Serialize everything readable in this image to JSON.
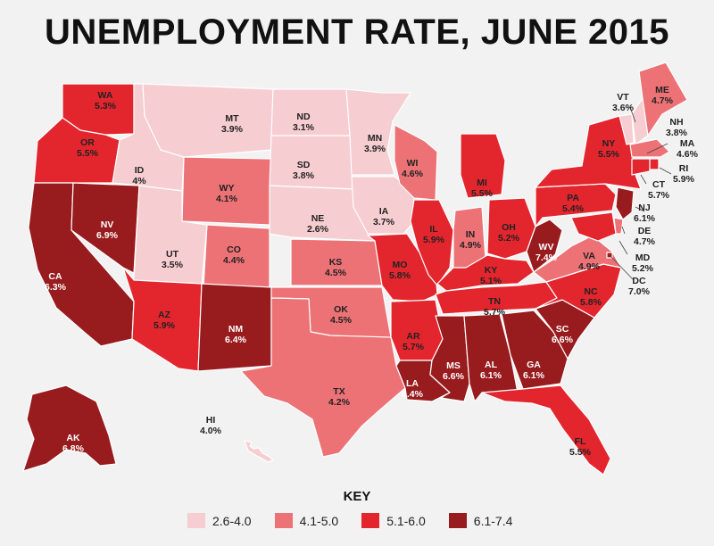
{
  "title": "UNEMPLOYMENT RATE, JUNE 2015",
  "key": {
    "title": "KEY",
    "items": [
      {
        "range": "2.6-4.0",
        "color": "#f6cdd0"
      },
      {
        "range": "4.1-5.0",
        "color": "#ec7276"
      },
      {
        "range": "5.1-6.0",
        "color": "#e3262e"
      },
      {
        "range": "6.1-7.4",
        "color": "#981b1e"
      }
    ]
  },
  "states": [
    {
      "abbr": "WA",
      "rate": "5.3%"
    },
    {
      "abbr": "OR",
      "rate": "5.5%"
    },
    {
      "abbr": "CA",
      "rate": "6.3%"
    },
    {
      "abbr": "NV",
      "rate": "6.9%"
    },
    {
      "abbr": "ID",
      "rate": "4%"
    },
    {
      "abbr": "MT",
      "rate": "3.9%"
    },
    {
      "abbr": "WY",
      "rate": "4.1%"
    },
    {
      "abbr": "UT",
      "rate": "3.5%"
    },
    {
      "abbr": "AZ",
      "rate": "5.9%"
    },
    {
      "abbr": "CO",
      "rate": "4.4%"
    },
    {
      "abbr": "NM",
      "rate": "6.4%"
    },
    {
      "abbr": "ND",
      "rate": "3.1%"
    },
    {
      "abbr": "SD",
      "rate": "3.8%"
    },
    {
      "abbr": "NE",
      "rate": "2.6%"
    },
    {
      "abbr": "KS",
      "rate": "4.5%"
    },
    {
      "abbr": "OK",
      "rate": "4.5%"
    },
    {
      "abbr": "TX",
      "rate": "4.2%"
    },
    {
      "abbr": "MN",
      "rate": "3.9%"
    },
    {
      "abbr": "IA",
      "rate": "3.7%"
    },
    {
      "abbr": "MO",
      "rate": "5.8%"
    },
    {
      "abbr": "AR",
      "rate": "5.7%"
    },
    {
      "abbr": "LA",
      "rate": "6.4%"
    },
    {
      "abbr": "WI",
      "rate": "4.6%"
    },
    {
      "abbr": "IL",
      "rate": "5.9%"
    },
    {
      "abbr": "MI",
      "rate": "5.5%"
    },
    {
      "abbr": "IN",
      "rate": "4.9%"
    },
    {
      "abbr": "OH",
      "rate": "5.2%"
    },
    {
      "abbr": "KY",
      "rate": "5.1%"
    },
    {
      "abbr": "TN",
      "rate": "5.7%"
    },
    {
      "abbr": "MS",
      "rate": "6.6%"
    },
    {
      "abbr": "AL",
      "rate": "6.1%"
    },
    {
      "abbr": "GA",
      "rate": "6.1%"
    },
    {
      "abbr": "FL",
      "rate": "5.5%"
    },
    {
      "abbr": "SC",
      "rate": "6.6%"
    },
    {
      "abbr": "NC",
      "rate": "5.8%"
    },
    {
      "abbr": "VA",
      "rate": "4.9%"
    },
    {
      "abbr": "WV",
      "rate": "7.4%"
    },
    {
      "abbr": "PA",
      "rate": "5.4%"
    },
    {
      "abbr": "NY",
      "rate": "5.5%"
    },
    {
      "abbr": "VT",
      "rate": "3.6%"
    },
    {
      "abbr": "NH",
      "rate": "3.8%"
    },
    {
      "abbr": "ME",
      "rate": "4.7%"
    },
    {
      "abbr": "MA",
      "rate": "4.6%"
    },
    {
      "abbr": "RI",
      "rate": "5.9%"
    },
    {
      "abbr": "CT",
      "rate": "5.7%"
    },
    {
      "abbr": "NJ",
      "rate": "6.1%"
    },
    {
      "abbr": "DE",
      "rate": "4.7%"
    },
    {
      "abbr": "MD",
      "rate": "5.2%"
    },
    {
      "abbr": "DC",
      "rate": "7.0%"
    },
    {
      "abbr": "AK",
      "rate": "6.8%"
    },
    {
      "abbr": "HI",
      "rate": "4.0%"
    }
  ]
}
